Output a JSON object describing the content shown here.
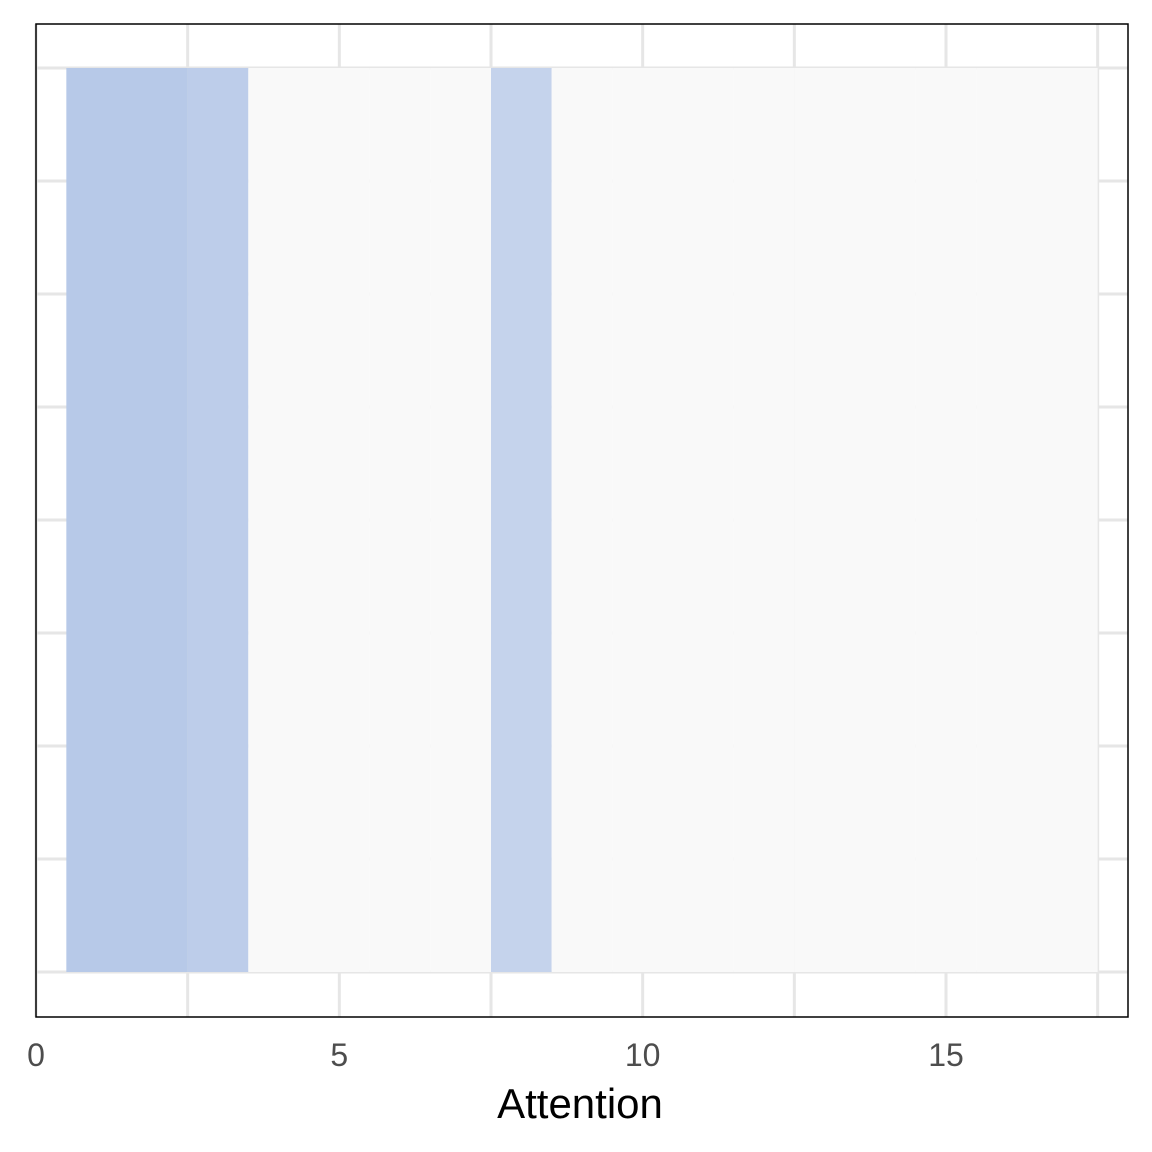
{
  "chart_data": {
    "type": "heatmap",
    "title": "",
    "xlabel": "Attention",
    "ylabel": "",
    "xlim": [
      0,
      18
    ],
    "x_ticks": [
      0,
      5,
      10,
      15
    ],
    "x_tick_labels": [
      "0",
      "5",
      "10",
      "15"
    ],
    "x_minor_ticks": [
      2.5,
      7.5,
      12.5,
      17.5
    ],
    "grid": true,
    "legend": "none",
    "cells": [
      {
        "x": 1,
        "value": 0.25
      },
      {
        "x": 2,
        "value": 0.25
      },
      {
        "x": 3,
        "value": 0.22
      },
      {
        "x": 4,
        "value": 0
      },
      {
        "x": 5,
        "value": 0
      },
      {
        "x": 6,
        "value": 0
      },
      {
        "x": 7,
        "value": 0
      },
      {
        "x": 8,
        "value": 0.18
      },
      {
        "x": 9,
        "value": 0
      },
      {
        "x": 10,
        "value": 0
      },
      {
        "x": 11,
        "value": 0
      },
      {
        "x": 12,
        "value": 0
      },
      {
        "x": 13,
        "value": 0
      },
      {
        "x": 14,
        "value": 0
      },
      {
        "x": 15,
        "value": 0
      },
      {
        "x": 16,
        "value": 0
      },
      {
        "x": 17,
        "value": 0
      }
    ],
    "colors": {
      "low": "#f9f9f9",
      "high": "#9fb7e2",
      "grid": "#e6e6e6",
      "panel_border": "#000000"
    }
  }
}
